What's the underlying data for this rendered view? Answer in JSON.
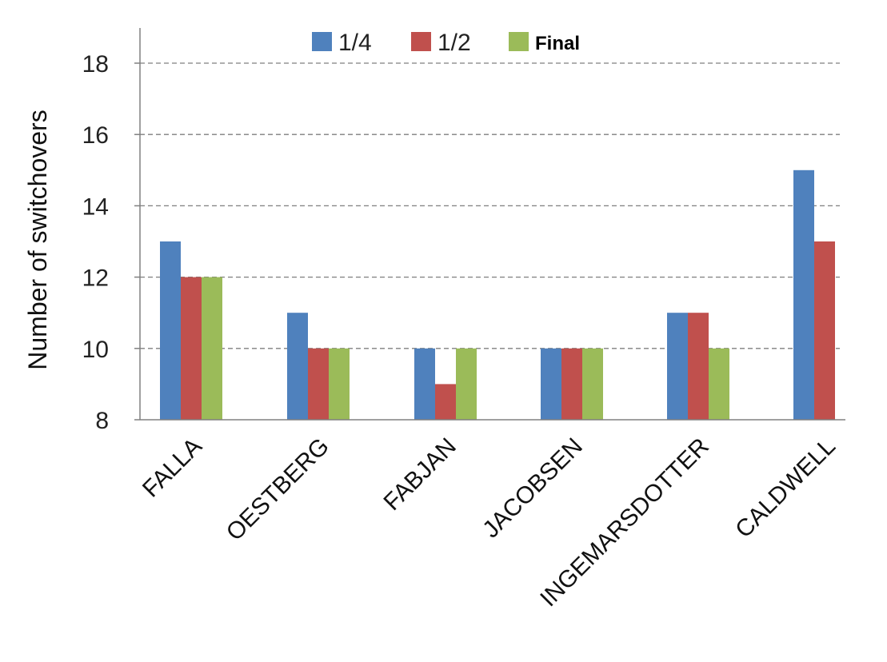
{
  "chart_data": {
    "type": "bar",
    "title": "",
    "xlabel": "",
    "ylabel": "Number of switchovers",
    "ylim": [
      8,
      19
    ],
    "yticks": [
      8,
      10,
      12,
      14,
      16,
      18
    ],
    "grid": true,
    "legend_position": "top",
    "categories": [
      "FALLA",
      "OESTBERG",
      "FABJAN",
      "JACOBSEN",
      "INGEMARSDOTTER",
      "CALDWELL"
    ],
    "series": [
      {
        "name": "1/4",
        "color": "#4f81bd",
        "values": [
          13,
          11,
          10,
          10,
          11,
          15
        ]
      },
      {
        "name": "1/2",
        "color": "#c0504d",
        "values": [
          12,
          10,
          9,
          10,
          11,
          13
        ]
      },
      {
        "name": "Final",
        "color": "#9bbb59",
        "values": [
          12,
          10,
          10,
          10,
          10,
          null
        ]
      }
    ]
  }
}
